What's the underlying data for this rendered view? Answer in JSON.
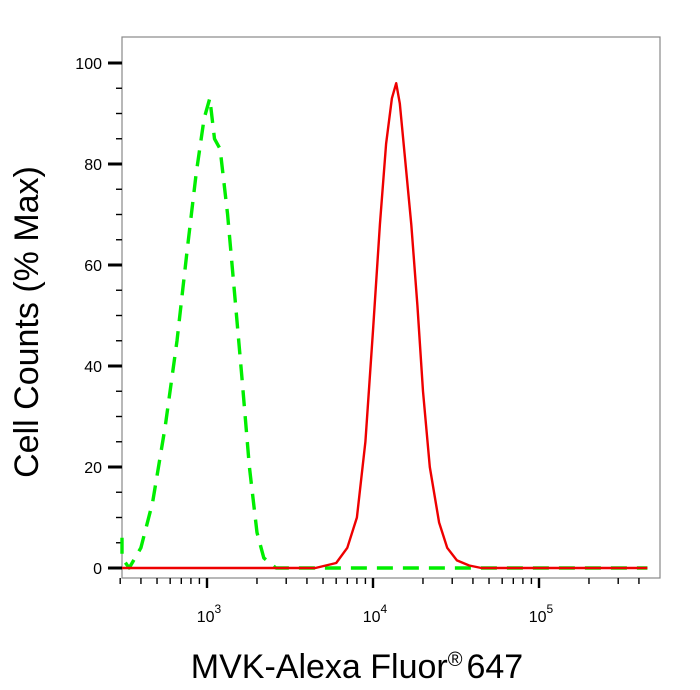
{
  "chart_data": {
    "type": "line",
    "title": "",
    "xlabel": "MVK-Alexa Fluor",
    "xlabel_mark": "®",
    "xlabel_suffix": "647",
    "ylabel": "Cell Counts (% Max)",
    "x_scale": "log",
    "xlim": [
      280,
      450000
    ],
    "ylim": [
      -2,
      105
    ],
    "y_ticks": [
      0,
      20,
      40,
      60,
      80,
      100
    ],
    "x_ticks": [
      {
        "value": 1000,
        "base": "10",
        "exp": "3"
      },
      {
        "value": 10000,
        "base": "10",
        "exp": "4"
      },
      {
        "value": 100000,
        "base": "10",
        "exp": "5"
      }
    ],
    "grid": false,
    "legend": "none",
    "series": [
      {
        "color": "#00ee00",
        "dash": true,
        "points": [
          [
            280,
            6
          ],
          [
            300,
            2
          ],
          [
            340,
            0
          ],
          [
            400,
            4
          ],
          [
            470,
            13
          ],
          [
            560,
            28
          ],
          [
            660,
            45
          ],
          [
            760,
            63
          ],
          [
            860,
            78
          ],
          [
            960,
            89
          ],
          [
            1040,
            93
          ],
          [
            1110,
            85
          ],
          [
            1200,
            83
          ],
          [
            1330,
            70
          ],
          [
            1460,
            55
          ],
          [
            1620,
            38
          ],
          [
            1800,
            20
          ],
          [
            2000,
            7
          ],
          [
            2200,
            2
          ],
          [
            2600,
            0
          ],
          [
            5000,
            0
          ],
          [
            20000,
            0
          ],
          [
            450000,
            0
          ]
        ]
      },
      {
        "color": "#ee0000",
        "dash": false,
        "points": [
          [
            280,
            0
          ],
          [
            4500,
            0
          ],
          [
            6000,
            1
          ],
          [
            7000,
            4
          ],
          [
            8000,
            10
          ],
          [
            9000,
            25
          ],
          [
            10000,
            47
          ],
          [
            11000,
            68
          ],
          [
            12000,
            84
          ],
          [
            13000,
            93
          ],
          [
            13800,
            96
          ],
          [
            14500,
            92
          ],
          [
            15500,
            82
          ],
          [
            17000,
            68
          ],
          [
            18500,
            52
          ],
          [
            20000,
            35
          ],
          [
            22000,
            20
          ],
          [
            25000,
            9
          ],
          [
            28000,
            4
          ],
          [
            32000,
            1.5
          ],
          [
            38000,
            0.5
          ],
          [
            45000,
            0
          ],
          [
            450000,
            0
          ]
        ]
      }
    ]
  }
}
